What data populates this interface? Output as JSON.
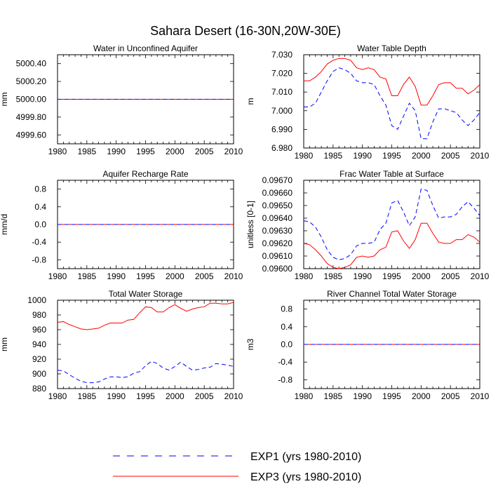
{
  "title": "Sahara Desert (16-30N,20W-30E)",
  "legend": [
    {
      "label": "EXP1 (yrs 1980-2010)",
      "color": "#0000ff",
      "dash": true
    },
    {
      "label": "EXP3 (yrs 1980-2010)",
      "color": "#ff0000",
      "dash": false
    }
  ],
  "chart_data": [
    {
      "type": "line",
      "title": "Water in Unconfined Aquifer",
      "ylabel": "mm",
      "xlim": [
        1980,
        2010
      ],
      "ylim": [
        4999.5,
        5000.5
      ],
      "xticks": [
        1980,
        1985,
        1990,
        1995,
        2000,
        2005,
        2010
      ],
      "yticks": [
        4999.6,
        4999.8,
        5000.0,
        5000.2,
        5000.4
      ],
      "ytick_labels": [
        "4999.60",
        "4999.80",
        "5000.00",
        "5000.20",
        "5000.40"
      ],
      "series": [
        {
          "name": "EXP1 (yrs 1980-2010)",
          "color": "#0000ff",
          "dash": true,
          "x": [
            1980,
            2010
          ],
          "values": [
            5000.0,
            5000.0
          ]
        },
        {
          "name": "EXP3 (yrs 1980-2010)",
          "color": "#ff0000",
          "dash": false,
          "x": [
            1980,
            2010
          ],
          "values": [
            5000.0,
            5000.0
          ]
        }
      ]
    },
    {
      "type": "line",
      "title": "Water Table Depth",
      "ylabel": "m",
      "xlim": [
        1980,
        2010
      ],
      "ylim": [
        6.98,
        7.03
      ],
      "xticks": [
        1980,
        1985,
        1990,
        1995,
        2000,
        2005,
        2010
      ],
      "yticks": [
        6.98,
        6.99,
        7.0,
        7.01,
        7.02,
        7.03
      ],
      "ytick_labels": [
        "6.980",
        "6.990",
        "7.000",
        "7.010",
        "7.020",
        "7.030"
      ],
      "series": [
        {
          "name": "EXP1 (yrs 1980-2010)",
          "color": "#0000ff",
          "dash": true,
          "x": [
            1980,
            1981,
            1982,
            1983,
            1984,
            1985,
            1986,
            1987,
            1988,
            1989,
            1990,
            1991,
            1992,
            1993,
            1994,
            1995,
            1996,
            1997,
            1998,
            1999,
            2000,
            2001,
            2002,
            2003,
            2004,
            2005,
            2006,
            2007,
            2008,
            2009,
            2010
          ],
          "values": [
            7.002,
            7.002,
            7.004,
            7.01,
            7.016,
            7.021,
            7.023,
            7.022,
            7.02,
            7.016,
            7.015,
            7.015,
            7.014,
            7.008,
            7.003,
            6.992,
            6.99,
            6.997,
            7.004,
            7.0,
            6.985,
            6.985,
            6.994,
            7.001,
            7.001,
            7.0,
            6.999,
            6.995,
            6.992,
            6.995,
            6.999
          ]
        },
        {
          "name": "EXP3 (yrs 1980-2010)",
          "color": "#ff0000",
          "dash": false,
          "x": [
            1980,
            1981,
            1982,
            1983,
            1984,
            1985,
            1986,
            1987,
            1988,
            1989,
            1990,
            1991,
            1992,
            1993,
            1994,
            1995,
            1996,
            1997,
            1998,
            1999,
            2000,
            2001,
            2002,
            2003,
            2004,
            2005,
            2006,
            2007,
            2008,
            2009,
            2010
          ],
          "values": [
            7.016,
            7.016,
            7.018,
            7.021,
            7.025,
            7.027,
            7.028,
            7.028,
            7.027,
            7.023,
            7.022,
            7.023,
            7.022,
            7.018,
            7.017,
            7.008,
            7.008,
            7.014,
            7.018,
            7.013,
            7.003,
            7.003,
            7.008,
            7.014,
            7.015,
            7.015,
            7.012,
            7.012,
            7.009,
            7.011,
            7.014
          ]
        }
      ]
    },
    {
      "type": "line",
      "title": "Aquifer Recharge Rate",
      "ylabel": "mm/d",
      "xlim": [
        1980,
        2010
      ],
      "ylim": [
        -1.0,
        1.0
      ],
      "xticks": [
        1980,
        1985,
        1990,
        1995,
        2000,
        2005,
        2010
      ],
      "yticks": [
        -0.8,
        -0.4,
        0.0,
        0.4,
        0.8
      ],
      "ytick_labels": [
        "-0.8",
        "-0.4",
        "0.0",
        "0.4",
        "0.8"
      ],
      "series": [
        {
          "name": "EXP1 (yrs 1980-2010)",
          "color": "#0000ff",
          "dash": true,
          "x": [
            1980,
            2010
          ],
          "values": [
            0.0,
            0.0
          ]
        },
        {
          "name": "EXP3 (yrs 1980-2010)",
          "color": "#ff0000",
          "dash": false,
          "x": [
            1980,
            2010
          ],
          "values": [
            0.0,
            0.0
          ]
        }
      ]
    },
    {
      "type": "line",
      "title": "Frac Water Table at Surface",
      "ylabel": "unitless [0-1]",
      "xlim": [
        1980,
        2010
      ],
      "ylim": [
        0.096,
        0.0967
      ],
      "xticks": [
        1980,
        1985,
        1990,
        1995,
        2000,
        2005,
        2010
      ],
      "yticks": [
        0.096,
        0.0961,
        0.0962,
        0.0963,
        0.0964,
        0.0965,
        0.0966,
        0.0967
      ],
      "ytick_labels": [
        "0.09600",
        "0.09610",
        "0.09620",
        "0.09630",
        "0.09640",
        "0.09650",
        "0.09660",
        "0.09670"
      ],
      "series": [
        {
          "name": "EXP1 (yrs 1980-2010)",
          "color": "#0000ff",
          "dash": true,
          "x": [
            1980,
            1981,
            1982,
            1983,
            1984,
            1985,
            1986,
            1987,
            1988,
            1989,
            1990,
            1991,
            1992,
            1993,
            1994,
            1995,
            1996,
            1997,
            1998,
            1999,
            2000,
            2001,
            2002,
            2003,
            2004,
            2005,
            2006,
            2007,
            2008,
            2009,
            2010
          ],
          "values": [
            0.09638,
            0.09637,
            0.09633,
            0.09625,
            0.09615,
            0.09609,
            0.09607,
            0.09608,
            0.09611,
            0.09618,
            0.0962,
            0.0962,
            0.09621,
            0.09631,
            0.09636,
            0.09652,
            0.09654,
            0.09645,
            0.09634,
            0.09641,
            0.09663,
            0.09662,
            0.0965,
            0.0964,
            0.09641,
            0.09641,
            0.09643,
            0.09649,
            0.09653,
            0.09648,
            0.09642
          ]
        },
        {
          "name": "EXP3 (yrs 1980-2010)",
          "color": "#ff0000",
          "dash": false,
          "x": [
            1980,
            1981,
            1982,
            1983,
            1984,
            1985,
            1986,
            1987,
            1988,
            1989,
            1990,
            1991,
            1992,
            1993,
            1994,
            1995,
            1996,
            1997,
            1998,
            1999,
            2000,
            2001,
            2002,
            2003,
            2004,
            2005,
            2006,
            2007,
            2008,
            2009,
            2010
          ],
          "values": [
            0.0962,
            0.09619,
            0.09615,
            0.0961,
            0.09604,
            0.09601,
            0.096,
            0.09601,
            0.09603,
            0.09609,
            0.0961,
            0.09609,
            0.0961,
            0.09615,
            0.09617,
            0.09629,
            0.0963,
            0.09622,
            0.09616,
            0.09623,
            0.09636,
            0.09636,
            0.09628,
            0.09621,
            0.0962,
            0.0962,
            0.09623,
            0.09623,
            0.09627,
            0.09625,
            0.09621
          ]
        }
      ]
    },
    {
      "type": "line",
      "title": "Total Water Storage",
      "ylabel": "mm",
      "xlim": [
        1980,
        2010
      ],
      "ylim": [
        880,
        1000
      ],
      "xticks": [
        1980,
        1985,
        1990,
        1995,
        2000,
        2005,
        2010
      ],
      "yticks": [
        880,
        900,
        920,
        940,
        960,
        980,
        1000
      ],
      "ytick_labels": [
        "880",
        "900",
        "920",
        "940",
        "960",
        "980",
        "1000"
      ],
      "series": [
        {
          "name": "EXP1 (yrs 1980-2010)",
          "color": "#0000ff",
          "dash": true,
          "x": [
            1980,
            1981,
            1982,
            1983,
            1984,
            1985,
            1986,
            1987,
            1988,
            1989,
            1990,
            1991,
            1992,
            1993,
            1994,
            1995,
            1996,
            1997,
            1998,
            1999,
            2000,
            2001,
            2002,
            2003,
            2004,
            2005,
            2006,
            2007,
            2008,
            2009,
            2010
          ],
          "values": [
            905,
            904,
            899,
            894,
            890,
            888,
            888,
            889,
            893,
            896,
            896,
            895,
            896,
            901,
            903,
            911,
            917,
            914,
            908,
            905,
            910,
            916,
            910,
            905,
            906,
            908,
            909,
            914,
            913,
            912,
            910
          ]
        },
        {
          "name": "EXP3 (yrs 1980-2010)",
          "color": "#ff0000",
          "dash": false,
          "x": [
            1980,
            1981,
            1982,
            1983,
            1984,
            1985,
            1986,
            1987,
            1988,
            1989,
            1990,
            1991,
            1992,
            1993,
            1994,
            1995,
            1996,
            1997,
            1998,
            1999,
            2000,
            2001,
            2002,
            2003,
            2004,
            2005,
            2006,
            2007,
            2008,
            2009,
            2010
          ],
          "values": [
            970,
            971,
            967,
            964,
            961,
            960,
            961,
            962,
            966,
            969,
            969,
            969,
            973,
            974,
            983,
            991,
            990,
            984,
            984,
            990,
            994,
            989,
            985,
            988,
            990,
            991,
            996,
            996,
            995,
            995,
            997
          ]
        }
      ]
    },
    {
      "type": "line",
      "title": "River Channel Total Water Storage",
      "ylabel": "m3",
      "xlim": [
        1980,
        2010
      ],
      "ylim": [
        -1.0,
        1.0
      ],
      "xticks": [
        1980,
        1985,
        1990,
        1995,
        2000,
        2005,
        2010
      ],
      "yticks": [
        -0.8,
        -0.4,
        0.0,
        0.4,
        0.8
      ],
      "ytick_labels": [
        "-0.8",
        "-0.4",
        "0.0",
        "0.4",
        "0.8"
      ],
      "series": [
        {
          "name": "EXP1 (yrs 1980-2010)",
          "color": "#0000ff",
          "dash": true,
          "x": [
            1980,
            2010
          ],
          "values": [
            0.0,
            0.0
          ]
        },
        {
          "name": "EXP3 (yrs 1980-2010)",
          "color": "#ff0000",
          "dash": false,
          "x": [
            1980,
            2010
          ],
          "values": [
            0.0,
            0.0
          ]
        }
      ]
    }
  ]
}
